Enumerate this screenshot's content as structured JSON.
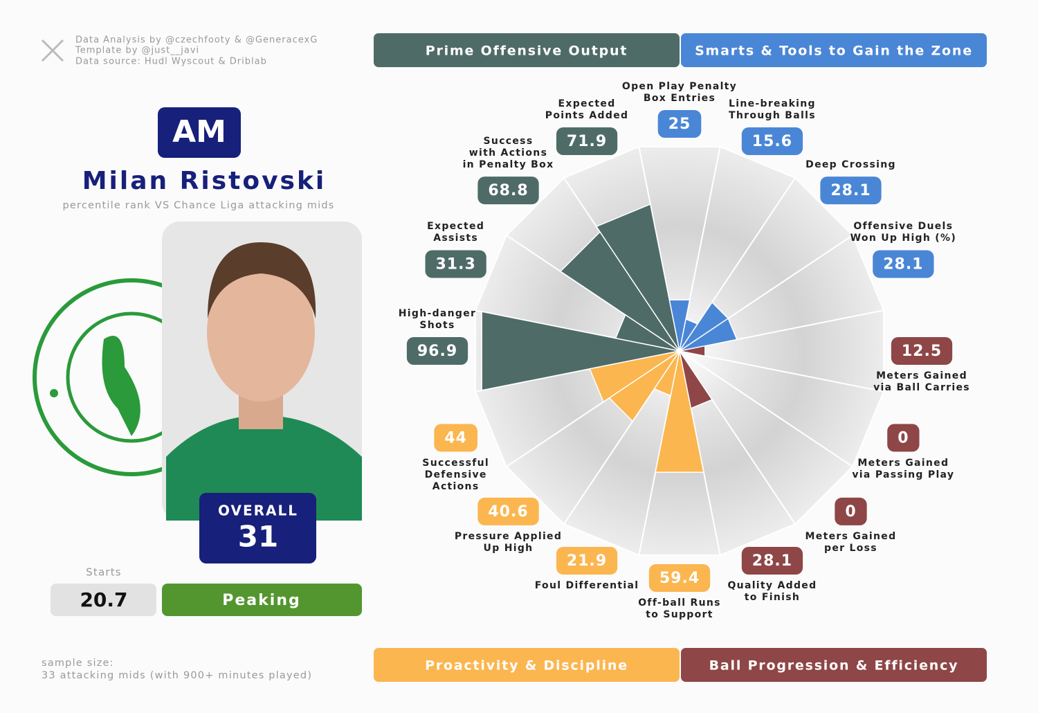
{
  "header": {
    "credits": [
      "Data Analysis by @czechfooty & @GeneracexG",
      "Template by @just__javi",
      "Data source: Hudl Wyscout & Driblab"
    ],
    "position": "AM",
    "player_name": "Milan Ristovski",
    "subtitle": "percentile rank VS Chance Liga attacking mids",
    "overall_label": "OVERALL",
    "overall": 31,
    "starts_label": "Starts",
    "starts": 20.7,
    "status": "Peaking",
    "footnote": [
      "sample size:",
      "33 attacking mids (with 900+ minutes played)"
    ]
  },
  "chart_data": {
    "type": "polar_bar",
    "rlim": [
      0,
      100
    ],
    "categories": [
      "Open Play Penalty\nBox Entries",
      "Line-breaking\nThrough Balls",
      "Deep Crossing",
      "Offensive Duels\nWon Up High (%)",
      "Meters Gained\nvia Ball Carries",
      "Meters Gained\nvia Passing Play",
      "Meters Gained\nper Loss",
      "Quality Added\nto Finish",
      "Off-ball Runs\nto Support",
      "Foul Differential",
      "Pressure Applied\nUp High",
      "Successful\nDefensive\nActions",
      "High-danger\nShots",
      "Expected\nAssists",
      "Success\nwith Actions\nin Penalty Box",
      "Expected\nPoints Added"
    ],
    "series": [
      {
        "name": "Prime Offensive Output",
        "color": "#4f6b68",
        "values": [
          null,
          null,
          null,
          null,
          null,
          null,
          null,
          null,
          null,
          null,
          null,
          null,
          96.9,
          31.3,
          68.8,
          71.9
        ]
      },
      {
        "name": "Smarts & Tools to Gain the Zone",
        "color": "#4a86d6",
        "values": [
          25,
          15.6,
          28.1,
          28.1,
          null,
          null,
          null,
          null,
          null,
          null,
          null,
          null,
          null,
          null,
          null,
          null
        ]
      },
      {
        "name": "Proactivity & Discipline",
        "color": "#fbb650",
        "values": [
          null,
          null,
          null,
          null,
          null,
          null,
          null,
          null,
          59.4,
          21.9,
          40.6,
          44,
          null,
          null,
          null,
          null
        ]
      },
      {
        "name": "Ball Progression & Efficiency",
        "color": "#8e4646",
        "values": [
          null,
          null,
          null,
          null,
          12.5,
          0,
          0,
          28.1,
          null,
          null,
          null,
          null,
          null,
          null,
          null,
          null
        ]
      }
    ]
  }
}
